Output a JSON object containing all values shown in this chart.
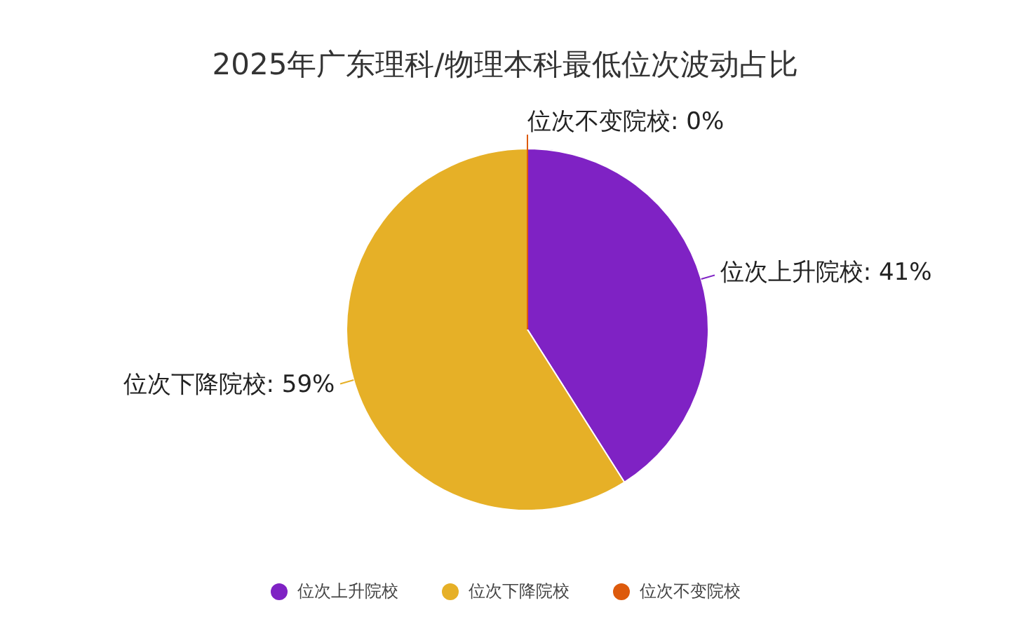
{
  "chart_data": {
    "type": "pie",
    "title": "2025年广东理科/物理本科最低位次波动占比",
    "categories": [
      "位次上升院校",
      "位次下降院校",
      "位次不变院校"
    ],
    "values": [
      41,
      59,
      0
    ],
    "colors": [
      "#7f22c4",
      "#e6b027",
      "#dd5a0c"
    ],
    "value_labels": [
      "位次上升院校: 41%",
      "位次下降院校: 59%",
      "位次不变院校: 0%"
    ],
    "legend": "bottom"
  }
}
